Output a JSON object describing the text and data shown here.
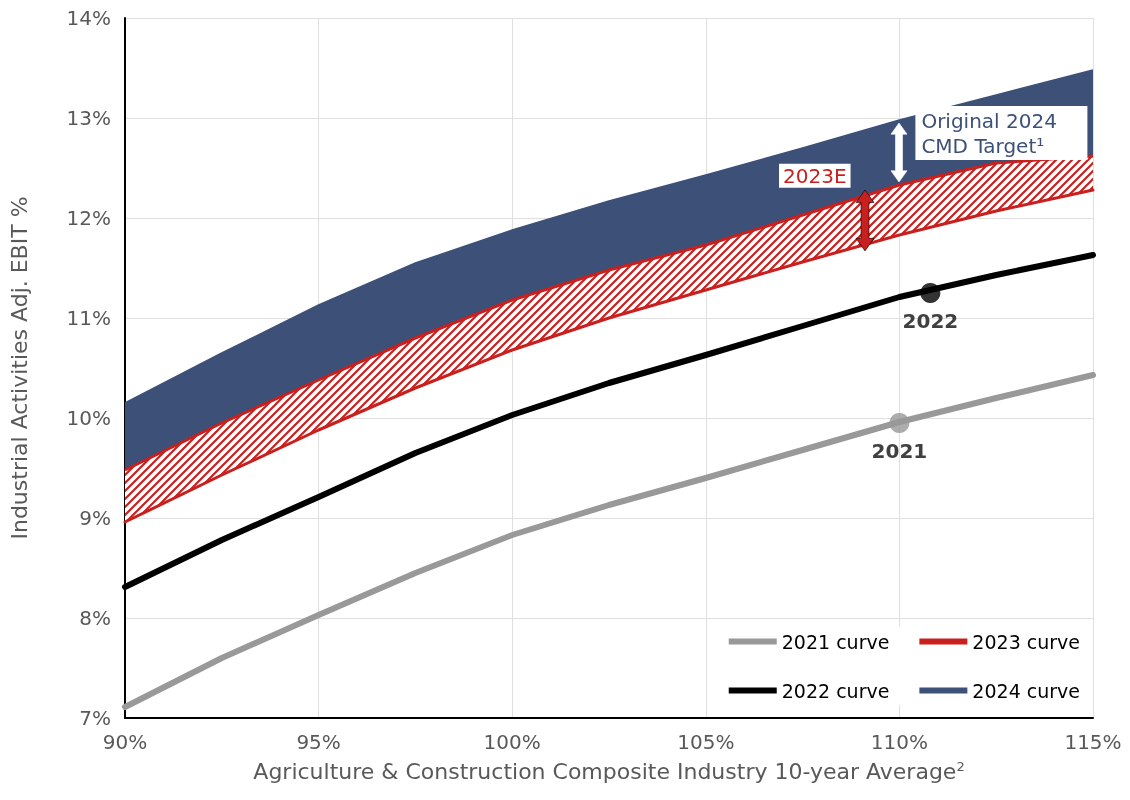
{
  "chart_data": {
    "type": "line",
    "xlabel": "Agriculture & Construction Composite Industry 10-year Average$^{2}$",
    "ylabel": "Industrial Activities Adj. EBIT %",
    "xlim": [
      90,
      115
    ],
    "xticks": [
      {
        "value": 90,
        "label": "90%"
      },
      {
        "value": 95,
        "label": "95%"
      },
      {
        "value": 100,
        "label": "100%"
      },
      {
        "value": 105,
        "label": "105%"
      },
      {
        "value": 110,
        "label": "110%"
      },
      {
        "value": 115,
        "label": "115%"
      }
    ],
    "ylim": [
      7,
      14
    ],
    "yticks": [
      {
        "value": 7,
        "label": "7%"
      },
      {
        "value": 8,
        "label": "8%"
      },
      {
        "value": 9,
        "label": "9%"
      },
      {
        "value": 10,
        "label": "10%"
      },
      {
        "value": 11,
        "label": "11%"
      },
      {
        "value": 12,
        "label": "12%"
      },
      {
        "value": 13,
        "label": "13%"
      },
      {
        "value": 14,
        "label": "14%"
      }
    ],
    "grid": true,
    "legend": "bottom right",
    "line_style": "solid",
    "marker": "none",
    "series": [
      {
        "name": "2021 curve",
        "type": "line",
        "color": "#999999",
        "x": [
          90,
          92.5,
          95,
          97.5,
          100,
          102.5,
          105,
          107.5,
          110,
          112.5,
          115
        ],
        "values": [
          7.11,
          7.6,
          8.03,
          8.45,
          8.83,
          9.13,
          9.4,
          9.68,
          9.96,
          10.2,
          10.43
        ]
      },
      {
        "name": "2022 curve",
        "type": "line",
        "color": "#000000",
        "x": [
          90,
          92.5,
          95,
          97.5,
          100,
          102.5,
          105,
          107.5,
          110,
          112.5,
          115
        ],
        "values": [
          8.31,
          8.78,
          9.21,
          9.65,
          10.03,
          10.35,
          10.63,
          10.92,
          11.21,
          11.43,
          11.63
        ]
      },
      {
        "type": "line",
        "color": "#c8201e",
        "x": [
          90,
          92.5,
          95,
          97.5,
          100,
          102.5,
          105,
          107.5,
          110,
          112.5,
          115
        ],
        "values": [
          8.96,
          9.43,
          9.88,
          10.3,
          10.68,
          11.0,
          11.28,
          11.56,
          11.83,
          12.07,
          12.28
        ]
      },
      {
        "name": "2023 curve",
        "type": "area",
        "color": "#c8201e",
        "x": [
          90,
          92.5,
          95,
          97.5,
          100,
          102.5,
          105,
          107.5,
          110,
          112.5,
          115
        ],
        "values": [
          9.48,
          9.95,
          10.38,
          10.8,
          11.18,
          11.48,
          11.73,
          12.03,
          12.33,
          12.55,
          12.62
        ]
      },
      {
        "name": "2024 curve",
        "type": "area",
        "color": "#3c5078",
        "x": [
          90,
          92.5,
          95,
          97.5,
          100,
          102.5,
          105,
          107.5,
          110,
          112.5,
          115
        ],
        "values": [
          10.15,
          10.65,
          11.13,
          11.55,
          11.88,
          12.17,
          12.43,
          12.7,
          12.98,
          13.23,
          13.48
        ]
      },
      {
        "type": "scatter",
        "color": "#999999",
        "marker": "circle",
        "x": [
          110
        ],
        "values": [
          9.95
        ]
      },
      {
        "type": "scatter",
        "color": "#000000",
        "marker": "circle",
        "x": [
          110.8
        ],
        "values": [
          11.25
        ]
      }
    ],
    "annotations": [
      "Original 2024 CMD Target¹",
      "2023E",
      {
        "text": "2021",
        "x": 110,
        "y": 9.95
      },
      {
        "text": "2022",
        "x": 110.8,
        "y": 11.25
      }
    ]
  }
}
